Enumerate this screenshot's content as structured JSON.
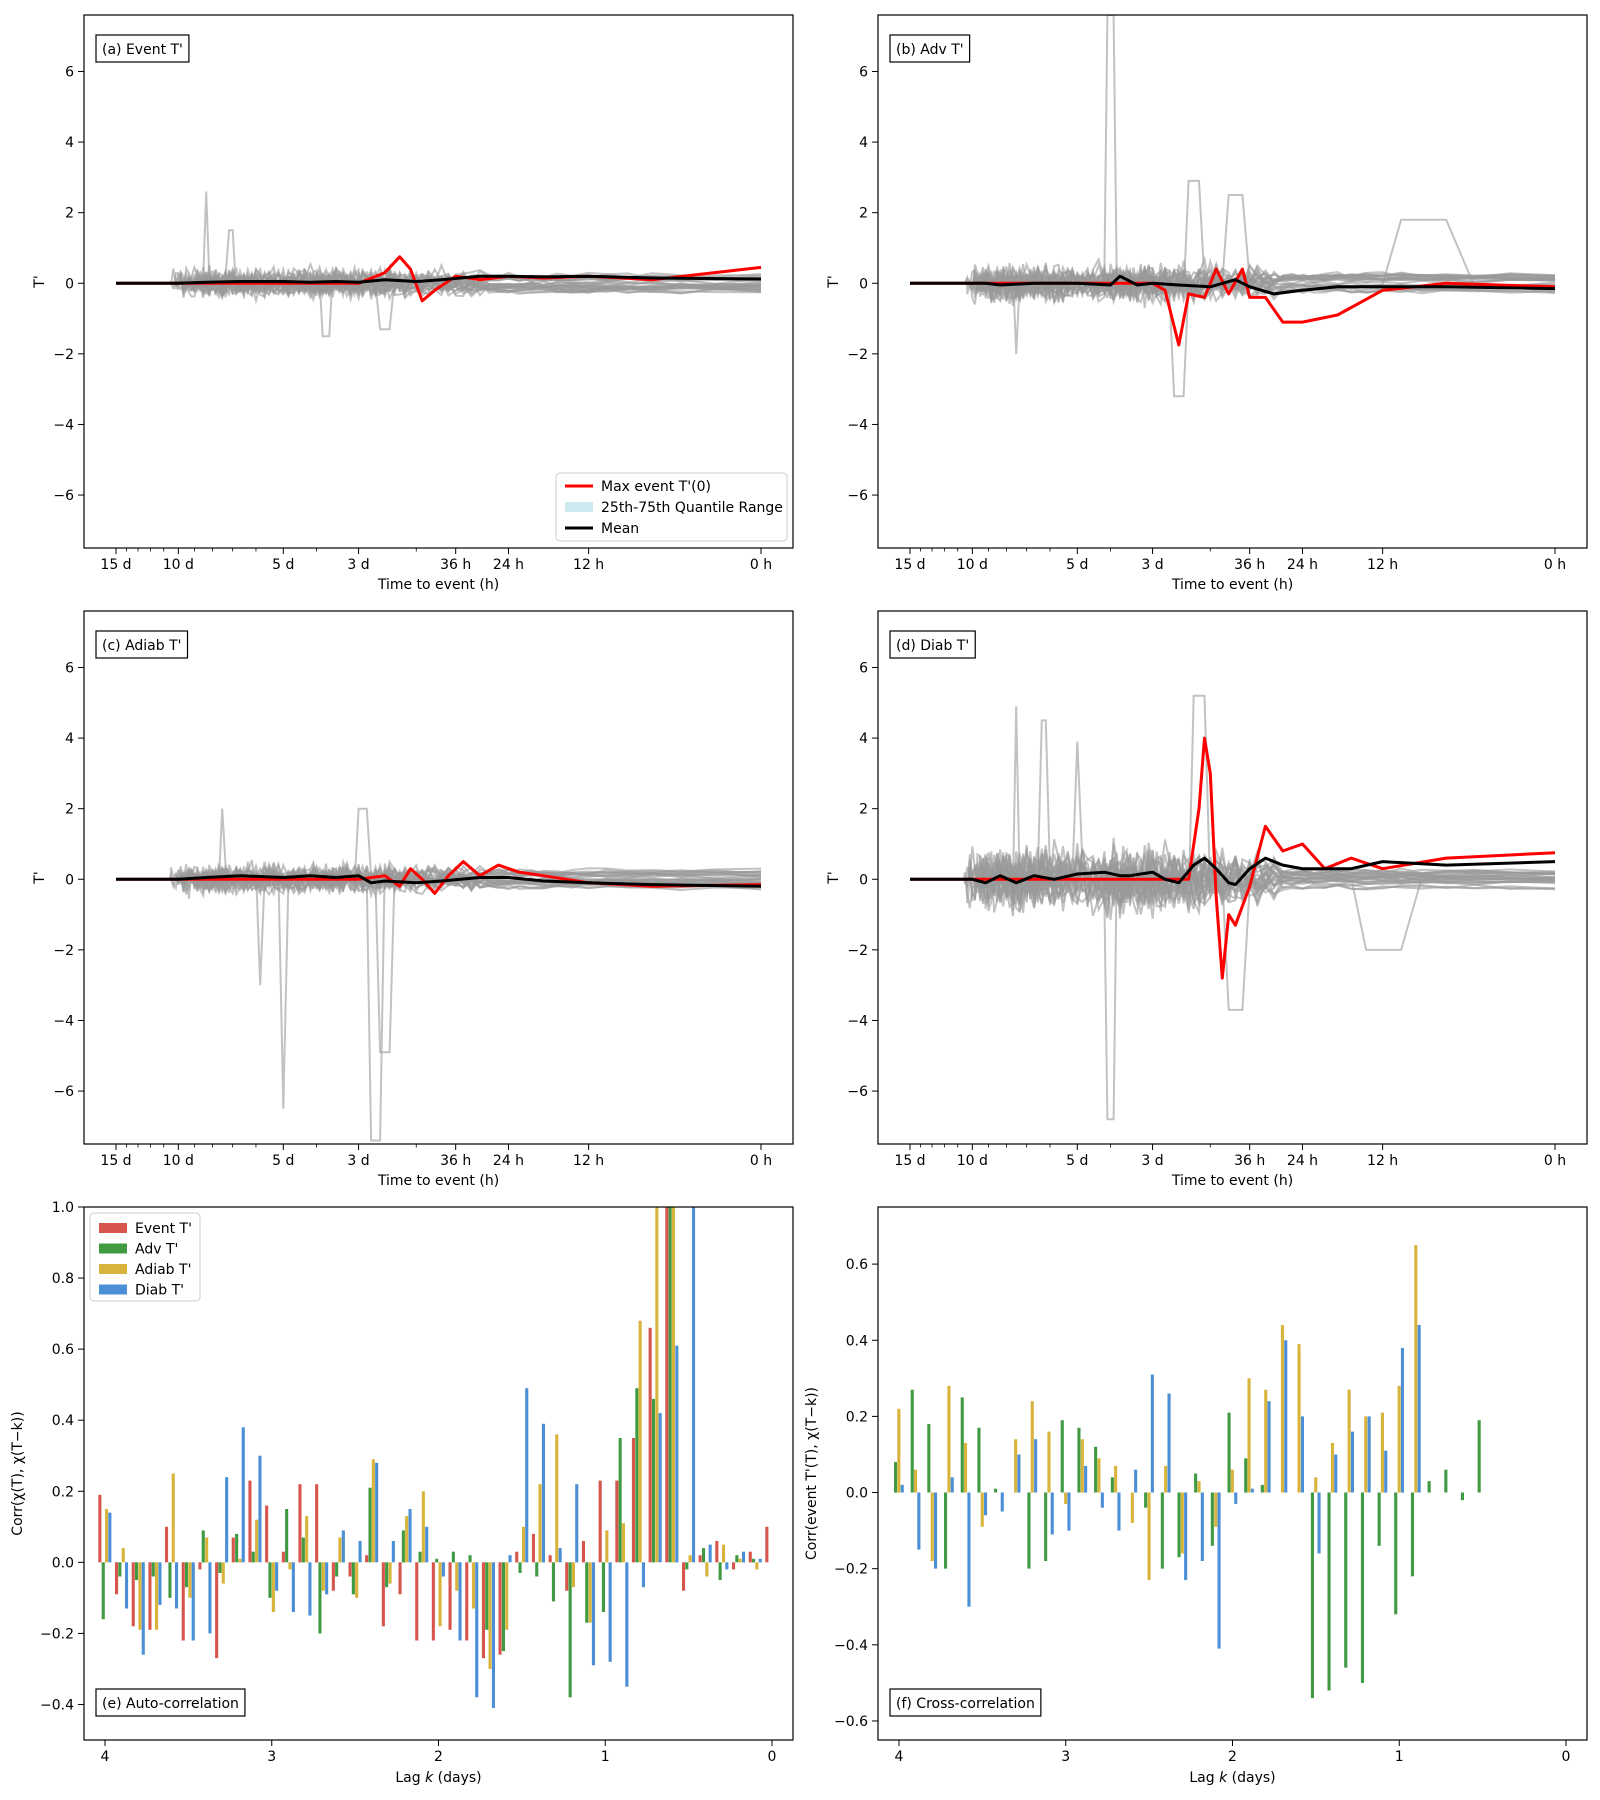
{
  "colors": {
    "thin": "#999999",
    "red": "#ff0000",
    "black": "#000000",
    "iqr": "#add8e6",
    "event": "#d6564e",
    "adv": "#3f9a42",
    "adiab": "#d8b43c",
    "diab": "#4b8fd6"
  },
  "time_axis": {
    "xlabel": "Time to event (h)",
    "ylabel": "T'",
    "tick_hours": [
      360,
      240,
      120,
      72,
      36,
      24,
      12,
      0
    ],
    "tick_labels": [
      "15 d",
      "10 d",
      "5 d",
      "3 d",
      "36 h",
      "24 h",
      "12 h",
      "0 h"
    ],
    "yticks": [
      -6,
      -4,
      -2,
      0,
      2,
      4,
      6
    ],
    "ylim": [
      -7.5,
      7.6
    ],
    "scale": "log(hours + 6)"
  },
  "legend_a": {
    "red_label": "Max event T'(0)",
    "iqr_label": "25th-75th Quantile Range",
    "mean_label": "Mean"
  },
  "lag_axis": {
    "xlabel_prefix": "Lag ",
    "xlabel_var": "k",
    "xlabel_suffix": " (days)",
    "xticks": [
      4,
      3,
      2,
      1,
      0
    ],
    "ylabel_e": "Corr(χ(T), χ(T−k))",
    "ylabel_f": "Corr(event T'(T), χ(T−k))"
  },
  "legend_e": [
    "Event T'",
    "Adv T'",
    "Adiab T'",
    "Diab T'"
  ],
  "chart_data": [
    {
      "panel": "a",
      "type": "line",
      "label": "(a) Event T'",
      "x_unit": "hours before event",
      "series": [
        {
          "name": "Max event T'(0)",
          "x": [
            360,
            240,
            200,
            160,
            120,
            100,
            84,
            72,
            60,
            54,
            50,
            46,
            42,
            36,
            30,
            24,
            18,
            12,
            6,
            0
          ],
          "y": [
            0,
            0,
            0,
            0,
            0,
            0,
            0,
            0,
            0.3,
            0.75,
            0.4,
            -0.5,
            -0.2,
            0.2,
            0.1,
            0.2,
            0.15,
            0.2,
            0.1,
            0.45
          ]
        },
        {
          "name": "Mean",
          "x": [
            360,
            240,
            200,
            160,
            120,
            100,
            84,
            72,
            60,
            48,
            40,
            30,
            24,
            18,
            12,
            6,
            0
          ],
          "y": [
            0,
            0,
            0.03,
            0.05,
            0.05,
            0.03,
            0.05,
            0.03,
            0.1,
            0.05,
            0.1,
            0.2,
            0.2,
            0.18,
            0.2,
            0.15,
            0.12
          ]
        }
      ]
    },
    {
      "panel": "b",
      "type": "line",
      "label": "(b) Adv T'",
      "x_unit": "hours before event",
      "series": [
        {
          "name": "Max event T'(0)",
          "x": [
            360,
            240,
            200,
            160,
            120,
            100,
            84,
            72,
            66,
            60,
            56,
            50,
            46,
            42,
            38,
            36,
            32,
            28,
            24,
            18,
            12,
            6,
            0
          ],
          "y": [
            0,
            0,
            0,
            0,
            0,
            0,
            0,
            0,
            -0.2,
            -1.75,
            -0.3,
            -0.4,
            0.4,
            -0.3,
            0.4,
            -0.4,
            -0.4,
            -1.1,
            -1.1,
            -0.9,
            -0.2,
            0,
            -0.1
          ]
        },
        {
          "name": "Mean",
          "x": [
            360,
            240,
            220,
            200,
            160,
            120,
            96,
            90,
            80,
            72,
            60,
            48,
            40,
            36,
            30,
            24,
            18,
            12,
            6,
            0
          ],
          "y": [
            0,
            0,
            0,
            -0.05,
            0,
            0,
            -0.05,
            0.2,
            -0.05,
            0,
            -0.05,
            -0.1,
            0.1,
            -0.1,
            -0.3,
            -0.2,
            -0.1,
            -0.1,
            -0.1,
            -0.15
          ]
        }
      ]
    },
    {
      "panel": "c",
      "type": "line",
      "label": "(c) Adiab T'",
      "x_unit": "hours before event",
      "series": [
        {
          "name": "Max event T'(0)",
          "x": [
            360,
            240,
            200,
            160,
            120,
            100,
            84,
            72,
            60,
            54,
            50,
            46,
            42,
            38,
            34,
            30,
            26,
            22,
            18,
            12,
            6,
            0
          ],
          "y": [
            0,
            0,
            0,
            0,
            0,
            0,
            0,
            0,
            0.1,
            -0.2,
            0.3,
            0,
            -0.4,
            0.1,
            0.5,
            0.1,
            0.4,
            0.2,
            0.1,
            -0.1,
            -0.2,
            -0.15
          ]
        },
        {
          "name": "Mean",
          "x": [
            360,
            240,
            200,
            160,
            120,
            100,
            84,
            72,
            66,
            60,
            48,
            40,
            30,
            24,
            18,
            12,
            6,
            0
          ],
          "y": [
            0,
            0,
            0.05,
            0.1,
            0.05,
            0.1,
            0.05,
            0.1,
            -0.1,
            -0.05,
            -0.1,
            -0.05,
            0.05,
            0.05,
            -0.05,
            -0.1,
            -0.15,
            -0.2
          ]
        }
      ]
    },
    {
      "panel": "d",
      "type": "line",
      "label": "(d) Diab T'",
      "x_unit": "hours before event",
      "series": [
        {
          "name": "Max event T'(0)",
          "x": [
            360,
            240,
            200,
            160,
            120,
            100,
            84,
            72,
            66,
            60,
            56,
            52,
            50,
            48,
            46,
            44,
            42,
            40,
            36,
            32,
            28,
            24,
            20,
            16,
            12,
            6,
            0
          ],
          "y": [
            0,
            0,
            0,
            0,
            0,
            0,
            0,
            0,
            0,
            0,
            0,
            2,
            4,
            3,
            -0.5,
            -2.8,
            -1,
            -1.3,
            -0.2,
            1.5,
            0.8,
            1,
            0.3,
            0.6,
            0.3,
            0.6,
            0.75
          ]
        },
        {
          "name": "Mean",
          "x": [
            360,
            240,
            220,
            200,
            180,
            160,
            140,
            120,
            100,
            90,
            84,
            72,
            66,
            60,
            54,
            50,
            46,
            42,
            40,
            36,
            32,
            28,
            24,
            20,
            16,
            12,
            6,
            0
          ],
          "y": [
            0,
            0,
            -0.1,
            0.1,
            -0.1,
            0.1,
            0,
            0.15,
            0.2,
            0.1,
            0.1,
            0.2,
            0,
            -0.1,
            0.4,
            0.6,
            0.3,
            -0.1,
            -0.15,
            0.3,
            0.6,
            0.4,
            0.3,
            0.3,
            0.3,
            0.5,
            0.4,
            0.5
          ]
        }
      ]
    },
    {
      "panel": "e",
      "type": "bar",
      "label": "(e) Auto-correlation",
      "xlabel": "Lag k (days)",
      "x_lag_days": [
        4.0,
        3.9,
        3.8,
        3.7,
        3.6,
        3.5,
        3.4,
        3.3,
        3.2,
        3.1,
        3.0,
        2.9,
        2.8,
        2.7,
        2.6,
        2.5,
        2.4,
        2.3,
        2.2,
        2.1,
        2.0,
        1.9,
        1.8,
        1.7,
        1.6,
        1.5,
        1.4,
        1.3,
        1.2,
        1.1,
        1.0,
        0.9,
        0.8,
        0.7,
        0.6,
        0.5,
        0.4,
        0.3,
        0.2,
        0.1,
        0.0
      ],
      "ylim": [
        -0.5,
        1.0
      ],
      "yticks": [
        -0.4,
        -0.2,
        0.0,
        0.2,
        0.4,
        0.6,
        0.8,
        1.0
      ],
      "series": [
        {
          "name": "Event T'",
          "values": [
            0.19,
            -0.09,
            -0.18,
            -0.19,
            0.1,
            -0.22,
            -0.02,
            -0.27,
            0.07,
            0.23,
            0.16,
            0.03,
            0.22,
            0.22,
            -0.08,
            -0.04,
            0.02,
            -0.18,
            -0.09,
            -0.22,
            -0.22,
            -0.19,
            -0.22,
            -0.27,
            -0.26,
            0.03,
            0.08,
            0.02,
            -0.08,
            0.06,
            0.23,
            0.23,
            0.35,
            0.66,
            1.0,
            -0.08,
            0.02,
            0.06,
            -0.02,
            0.03,
            0.1
          ]
        },
        {
          "name": "Adv T'",
          "values": [
            -0.16,
            -0.04,
            -0.05,
            -0.04,
            -0.1,
            -0.07,
            0.09,
            -0.03,
            0.08,
            0.03,
            -0.1,
            0.15,
            0.07,
            -0.2,
            -0.04,
            -0.09,
            0.21,
            -0.07,
            0.09,
            0.03,
            0.01,
            0.03,
            0.02,
            -0.19,
            -0.25,
            -0.03,
            -0.04,
            -0.11,
            -0.38,
            -0.17,
            -0.14,
            0.35,
            0.49,
            0.46,
            1.0,
            -0.02,
            0.04,
            -0.05,
            0.02,
            0.01,
            0.0
          ]
        },
        {
          "name": "Adiab T'",
          "values": [
            0.15,
            0.04,
            -0.19,
            -0.19,
            0.25,
            -0.1,
            0.07,
            -0.06,
            0.01,
            0.12,
            -0.14,
            -0.02,
            0.13,
            -0.08,
            0.07,
            -0.1,
            0.29,
            -0.06,
            0.13,
            0.2,
            -0.18,
            -0.08,
            -0.13,
            -0.3,
            -0.19,
            0.1,
            0.22,
            0.36,
            -0.07,
            -0.17,
            0.09,
            0.11,
            0.68,
            1.0,
            1.0,
            0.02,
            -0.04,
            0.05,
            0.01,
            -0.02,
            0.0
          ]
        },
        {
          "name": "Diab T'",
          "values": [
            0.14,
            -0.13,
            -0.26,
            -0.12,
            -0.13,
            -0.22,
            -0.2,
            0.24,
            0.38,
            0.3,
            -0.08,
            -0.14,
            -0.15,
            -0.09,
            0.09,
            0.06,
            0.28,
            0.06,
            0.15,
            0.1,
            -0.04,
            -0.22,
            -0.38,
            -0.41,
            0.02,
            0.49,
            0.39,
            0.04,
            0.22,
            -0.29,
            -0.28,
            -0.35,
            -0.07,
            0.42,
            0.61,
            1.0,
            0.05,
            -0.02,
            0.03,
            0.01,
            0.0
          ]
        }
      ]
    },
    {
      "panel": "f",
      "type": "bar",
      "label": "(f) Cross-correlation",
      "xlabel": "Lag k (days)",
      "x_lag_days": [
        4.0,
        3.9,
        3.8,
        3.7,
        3.6,
        3.5,
        3.4,
        3.3,
        3.2,
        3.1,
        3.0,
        2.9,
        2.8,
        2.7,
        2.6,
        2.5,
        2.4,
        2.3,
        2.2,
        2.1,
        2.0,
        1.9,
        1.8,
        1.7,
        1.6,
        1.5,
        1.4,
        1.3,
        1.2,
        1.1,
        1.0,
        0.9,
        0.8,
        0.7,
        0.6,
        0.5,
        0.4,
        0.3,
        0.2,
        0.1,
        0.0
      ],
      "ylim": [
        -0.65,
        0.75
      ],
      "yticks": [
        -0.6,
        -0.4,
        -0.2,
        0.0,
        0.2,
        0.4,
        0.6
      ],
      "series": [
        {
          "name": "Adv T'",
          "values": [
            0.08,
            0.27,
            0.18,
            -0.2,
            0.25,
            0.17,
            0.01,
            0.0,
            -0.2,
            -0.18,
            0.19,
            0.17,
            0.12,
            0.04,
            0.0,
            -0.04,
            -0.2,
            -0.17,
            0.05,
            -0.14,
            0.21,
            0.09,
            0.02,
            0.0,
            0.0,
            -0.54,
            -0.52,
            -0.46,
            -0.5,
            -0.14,
            -0.32,
            -0.22,
            0.03,
            0.06,
            -0.02,
            0.19,
            0.0,
            0.0,
            0.0,
            0.0,
            0.0
          ]
        },
        {
          "name": "Adiab T'",
          "values": [
            0.22,
            0.06,
            -0.18,
            0.28,
            0.13,
            -0.09,
            0.0,
            0.14,
            0.24,
            0.16,
            -0.03,
            0.14,
            0.09,
            0.07,
            -0.08,
            -0.23,
            0.07,
            -0.16,
            0.03,
            -0.09,
            0.06,
            0.3,
            0.27,
            0.44,
            0.39,
            0.04,
            0.13,
            0.27,
            0.2,
            0.21,
            0.28,
            0.65,
            0.0,
            0.0,
            0.0,
            0.0,
            0.0,
            0.0,
            0.0,
            0.0,
            0.0
          ]
        },
        {
          "name": "Diab T'",
          "values": [
            0.02,
            -0.15,
            -0.2,
            0.04,
            -0.3,
            -0.06,
            -0.05,
            0.1,
            0.14,
            -0.11,
            -0.1,
            0.07,
            -0.04,
            -0.1,
            0.06,
            0.31,
            0.26,
            -0.23,
            -0.18,
            -0.41,
            -0.03,
            0.01,
            0.24,
            0.4,
            0.2,
            -0.16,
            0.1,
            0.16,
            0.2,
            0.11,
            0.38,
            0.44,
            0.0,
            0.0,
            0.0,
            0.0,
            0.0,
            0.0,
            0.0,
            0.0,
            0.0
          ]
        }
      ]
    }
  ]
}
